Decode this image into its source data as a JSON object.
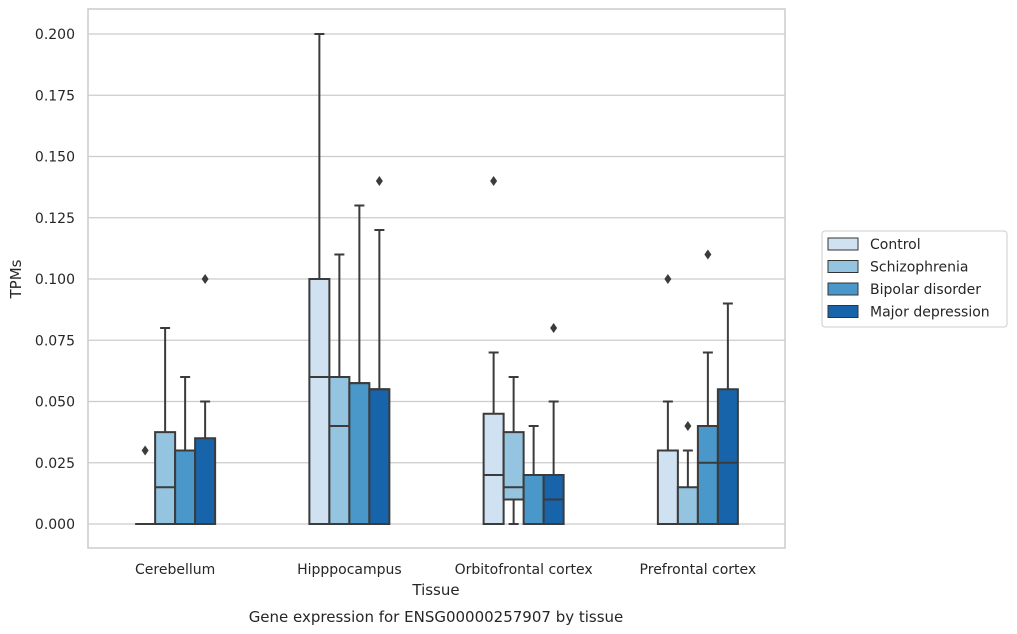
{
  "caption": "Gene expression for ENSG00000257907 by tissue",
  "chart_data": {
    "type": "box",
    "xlabel": "Tissue",
    "ylabel": "TPMs",
    "ylim": [
      -0.01,
      0.21
    ],
    "yticks": [
      0.0,
      0.025,
      0.05,
      0.075,
      0.1,
      0.125,
      0.15,
      0.175,
      0.2
    ],
    "ytick_labels": [
      "0.000",
      "0.025",
      "0.050",
      "0.075",
      "0.100",
      "0.125",
      "0.150",
      "0.175",
      "0.200"
    ],
    "grid": "horizontal",
    "legend_position": "right",
    "categories": [
      "Cerebellum",
      "Hipppocampus",
      "Orbitofrontal cortex",
      "Prefrontal cortex"
    ],
    "series": [
      {
        "name": "Control",
        "color": "#d0e1f2",
        "boxes": [
          {
            "q1": 0.0,
            "median": 0.0,
            "q3": 0.0,
            "whisker_low": 0.0,
            "whisker_high": 0.0,
            "outliers": [
              0.03
            ]
          },
          {
            "q1": 0.0,
            "median": 0.06,
            "q3": 0.1,
            "whisker_low": 0.0,
            "whisker_high": 0.2,
            "outliers": []
          },
          {
            "q1": 0.0,
            "median": 0.02,
            "q3": 0.045,
            "whisker_low": 0.0,
            "whisker_high": 0.07,
            "outliers": [
              0.14
            ]
          },
          {
            "q1": 0.0,
            "median": 0.0,
            "q3": 0.03,
            "whisker_low": 0.0,
            "whisker_high": 0.05,
            "outliers": [
              0.1
            ]
          }
        ]
      },
      {
        "name": "Schizophrenia",
        "color": "#94c4df",
        "boxes": [
          {
            "q1": 0.0,
            "median": 0.015,
            "q3": 0.0375,
            "whisker_low": 0.0,
            "whisker_high": 0.08,
            "outliers": []
          },
          {
            "q1": 0.0,
            "median": 0.04,
            "q3": 0.06,
            "whisker_low": 0.0,
            "whisker_high": 0.11,
            "outliers": []
          },
          {
            "q1": 0.01,
            "median": 0.015,
            "q3": 0.0375,
            "whisker_low": 0.0,
            "whisker_high": 0.06,
            "outliers": []
          },
          {
            "q1": 0.0,
            "median": 0.0,
            "q3": 0.015,
            "whisker_low": 0.0,
            "whisker_high": 0.03,
            "outliers": [
              0.04
            ]
          }
        ]
      },
      {
        "name": "Bipolar disorder",
        "color": "#4a98c9",
        "boxes": [
          {
            "q1": 0.0,
            "median": 0.0,
            "q3": 0.03,
            "whisker_low": 0.0,
            "whisker_high": 0.06,
            "outliers": []
          },
          {
            "q1": 0.0,
            "median": 0.0575,
            "q3": 0.0575,
            "whisker_low": 0.0,
            "whisker_high": 0.13,
            "outliers": []
          },
          {
            "q1": 0.0,
            "median": 0.02,
            "q3": 0.02,
            "whisker_low": 0.0,
            "whisker_high": 0.04,
            "outliers": []
          },
          {
            "q1": 0.0,
            "median": 0.025,
            "q3": 0.04,
            "whisker_low": 0.0,
            "whisker_high": 0.07,
            "outliers": [
              0.11
            ]
          }
        ]
      },
      {
        "name": "Major depression",
        "color": "#1764ab",
        "boxes": [
          {
            "q1": 0.0,
            "median": 0.0,
            "q3": 0.035,
            "whisker_low": 0.0,
            "whisker_high": 0.05,
            "outliers": [
              0.1
            ]
          },
          {
            "q1": 0.0,
            "median": 0.055,
            "q3": 0.055,
            "whisker_low": 0.0,
            "whisker_high": 0.12,
            "outliers": [
              0.14
            ]
          },
          {
            "q1": 0.0,
            "median": 0.01,
            "q3": 0.02,
            "whisker_low": 0.0,
            "whisker_high": 0.05,
            "outliers": [
              0.08
            ]
          },
          {
            "q1": 0.0,
            "median": 0.025,
            "q3": 0.055,
            "whisker_low": 0.0,
            "whisker_high": 0.09,
            "outliers": []
          }
        ]
      }
    ]
  }
}
